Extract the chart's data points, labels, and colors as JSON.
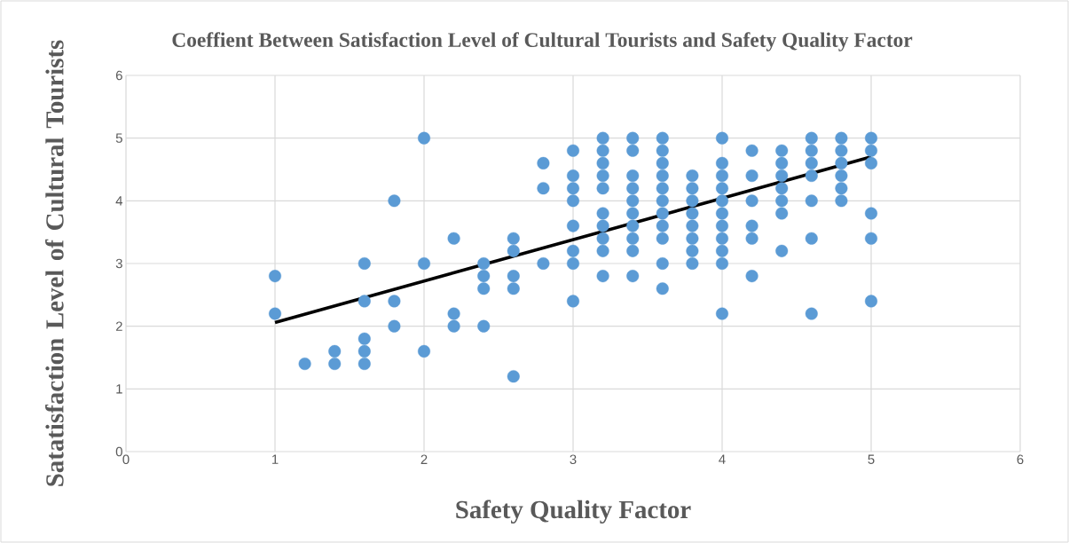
{
  "chart_data": {
    "type": "scatter",
    "title": "Coeffient Between Satisfaction Level of Cultural Tourists and Safety Quality Factor",
    "xlabel": "Safety Quality Factor",
    "ylabel": "Satatisfaction Level of Cultural Tourists",
    "xlim": [
      0,
      6
    ],
    "ylim": [
      0,
      6
    ],
    "xticks": [
      0,
      1,
      2,
      3,
      4,
      5,
      6
    ],
    "yticks": [
      0,
      1,
      2,
      3,
      4,
      5,
      6
    ],
    "grid": true,
    "marker": "circle",
    "series": [
      {
        "type": "scatter",
        "color": "#5b9bd5",
        "x": [
          1,
          1,
          1.2,
          1.4,
          1.4,
          1.6,
          1.6,
          1.6,
          1.6,
          1.6,
          1.8,
          1.8,
          1.8,
          2,
          2,
          2,
          2.2,
          2.2,
          2.2,
          2.4,
          2.4,
          2.4,
          2.4,
          2.6,
          2.6,
          2.6,
          2.6,
          2.6,
          2.8,
          2.8,
          2.8,
          3,
          3,
          3,
          3,
          3,
          3,
          3,
          3,
          3.2,
          3.2,
          3.2,
          3.2,
          3.2,
          3.2,
          3.2,
          3.2,
          3.2,
          3.2,
          3.4,
          3.4,
          3.4,
          3.4,
          3.4,
          3.4,
          3.4,
          3.4,
          3.4,
          3.4,
          3.6,
          3.6,
          3.6,
          3.6,
          3.6,
          3.6,
          3.6,
          3.6,
          3.6,
          3.6,
          3.6,
          3.8,
          3.8,
          3.8,
          3.8,
          3.8,
          3.8,
          3.8,
          3.8,
          4,
          4,
          4,
          4,
          4,
          4,
          4,
          4,
          4,
          4,
          4,
          4.2,
          4.2,
          4.2,
          4.2,
          4.2,
          4.2,
          4.4,
          4.4,
          4.4,
          4.4,
          4.4,
          4.4,
          4.4,
          4.6,
          4.6,
          4.6,
          4.6,
          4.6,
          4.6,
          4.6,
          4.8,
          4.8,
          4.8,
          4.8,
          4.8,
          4.8,
          5,
          5,
          5,
          5,
          5,
          5
        ],
        "values": [
          2.8,
          2.2,
          1.4,
          1.6,
          1.4,
          3,
          2.4,
          1.8,
          1.6,
          1.4,
          4,
          2.4,
          2,
          5,
          3,
          1.6,
          3.4,
          2.2,
          2,
          3,
          2.8,
          2.6,
          2,
          3.4,
          3.2,
          2.8,
          2.6,
          1.2,
          4.6,
          4.2,
          3,
          4.8,
          4.4,
          4.2,
          4,
          3.6,
          3.2,
          3,
          2.4,
          5,
          4.8,
          4.6,
          4.4,
          4.2,
          3.8,
          3.6,
          3.4,
          3.2,
          2.8,
          5,
          4.8,
          4.4,
          4.2,
          4,
          3.8,
          3.6,
          3.4,
          3.2,
          2.8,
          5,
          4.8,
          4.6,
          4.4,
          4.2,
          4,
          3.8,
          3.6,
          3.4,
          3,
          2.6,
          4.4,
          4.2,
          4,
          3.8,
          3.6,
          3.4,
          3.2,
          3,
          5,
          4.6,
          4.4,
          4.2,
          4,
          3.8,
          3.6,
          3.4,
          3.2,
          3,
          2.2,
          4.8,
          4.4,
          4,
          3.6,
          3.4,
          2.8,
          4.8,
          4.6,
          4.4,
          4.2,
          4,
          3.8,
          3.2,
          5,
          4.8,
          4.6,
          4.4,
          4,
          3.4,
          2.2,
          5,
          4.8,
          4.6,
          4.4,
          4.2,
          4,
          5,
          4.8,
          4.6,
          3.8,
          3.4,
          2.4
        ]
      },
      {
        "type": "line",
        "marker": "none",
        "color": "#000000",
        "x": [
          1,
          5
        ],
        "values": [
          2.06,
          4.7
        ]
      }
    ]
  }
}
